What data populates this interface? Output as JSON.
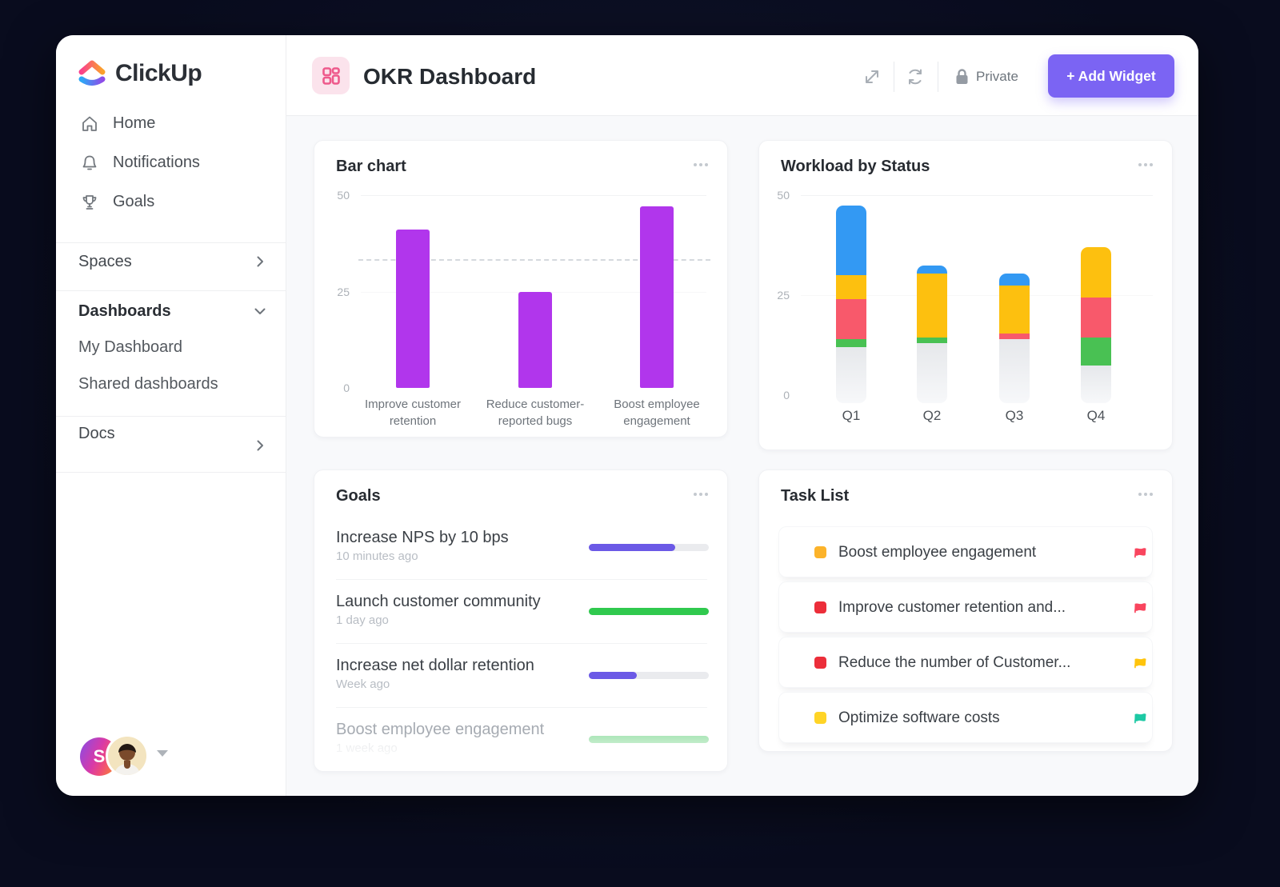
{
  "sidebar": {
    "logo_text": "ClickUp",
    "nav": [
      {
        "label": "Home",
        "icon": "home-icon"
      },
      {
        "label": "Notifications",
        "icon": "bell-icon"
      },
      {
        "label": "Goals",
        "icon": "trophy-icon"
      }
    ],
    "spaces_label": "Spaces",
    "dashboards_label": "Dashboards",
    "dashboards_children": [
      "My Dashboard",
      "Shared dashboards"
    ],
    "docs_label": "Docs",
    "avatar_initial": "S"
  },
  "header": {
    "title": "OKR Dashboard",
    "privacy_label": "Private",
    "add_widget_label": "+ Add Widget"
  },
  "widgets": {
    "bar_chart": {
      "title": "Bar chart"
    },
    "workload": {
      "title": "Workload by Status"
    },
    "goals": {
      "title": "Goals",
      "items": [
        {
          "title": "Increase NPS by 10 bps",
          "time": "10 minutes ago",
          "progress": 72,
          "color": "#6B59E6",
          "faded": false
        },
        {
          "title": "Launch customer community",
          "time": "1 day ago",
          "progress": 100,
          "color": "#30C94E",
          "faded": false
        },
        {
          "title": "Increase net dollar retention",
          "time": "Week ago",
          "progress": 40,
          "color": "#6B59E6",
          "faded": false
        },
        {
          "title": "Boost employee engagement",
          "time": "1 week ago",
          "progress": 100,
          "color": "#A9E5B5",
          "faded": true
        }
      ]
    },
    "task_list": {
      "title": "Task List",
      "items": [
        {
          "label": "Boost employee engagement",
          "square_color": "#FCB32A",
          "flag_color": "#F9455E"
        },
        {
          "label": "Improve customer retention and...",
          "square_color": "#EC2E3A",
          "flag_color": "#F9455E"
        },
        {
          "label": "Reduce the number of Customer...",
          "square_color": "#EC2E3A",
          "flag_color": "#FFC40C"
        },
        {
          "label": "Optimize software costs",
          "square_color": "#FFD426",
          "flag_color": "#1DC9A4"
        }
      ]
    }
  },
  "chart_data": [
    {
      "type": "bar",
      "title": "Bar chart",
      "categories": [
        "Improve customer\nretention",
        "Reduce customer-\nreported bugs",
        "Boost employee\nengagement"
      ],
      "values": [
        41,
        25,
        47
      ],
      "bar_color": "#B136EC",
      "reference_line": 33.5,
      "yticks": [
        0,
        25,
        50
      ],
      "ylim": [
        0,
        50
      ],
      "xlabel": "",
      "ylabel": "",
      "grid": "faint horizontal"
    },
    {
      "type": "bar",
      "stacked": true,
      "title": "Workload by Status",
      "categories": [
        "Q1",
        "Q2",
        "Q3",
        "Q4"
      ],
      "series": [
        {
          "name": "gray",
          "color": "#E6E8EB",
          "values": [
            12,
            13,
            14,
            7.5
          ]
        },
        {
          "name": "green",
          "color": "#49C153",
          "values": [
            2,
            1.5,
            0,
            7
          ]
        },
        {
          "name": "red",
          "color": "#F8596B",
          "values": [
            10,
            0,
            1.5,
            10
          ]
        },
        {
          "name": "yellow",
          "color": "#FDC00F",
          "values": [
            6,
            16,
            12,
            12.5
          ]
        },
        {
          "name": "blue",
          "color": "#3399F3",
          "values": [
            17.5,
            2,
            3,
            0
          ]
        }
      ],
      "yticks": [
        0,
        25,
        50
      ],
      "ylim": [
        0,
        50
      ],
      "xlabel": "",
      "ylabel": "",
      "grid": "faint horizontal"
    }
  ],
  "colors": {
    "accent_purple": "#7B64F3",
    "bar_purple": "#B136EC",
    "card_bg": "#FFFFFF",
    "main_bg": "#F8F9FB",
    "outer_bg": "#0A0D21"
  }
}
